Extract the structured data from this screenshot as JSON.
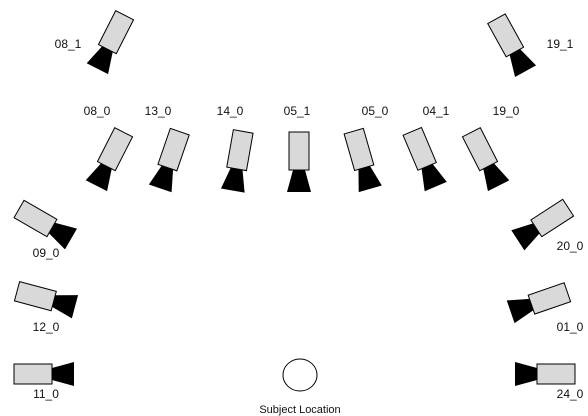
{
  "colors": {
    "camera_body": "#d9d9d9",
    "camera_lens": "#000000",
    "outline": "#000000",
    "subject_fill": "#ffffff"
  },
  "cameras": [
    {
      "id": "08_1",
      "label": "08_1"
    },
    {
      "id": "19_1",
      "label": "19_1"
    },
    {
      "id": "08_0",
      "label": "08_0"
    },
    {
      "id": "13_0",
      "label": "13_0"
    },
    {
      "id": "14_0",
      "label": "14_0"
    },
    {
      "id": "05_1",
      "label": "05_1"
    },
    {
      "id": "05_0",
      "label": "05_0"
    },
    {
      "id": "04_1",
      "label": "04_1"
    },
    {
      "id": "19_0",
      "label": "19_0"
    },
    {
      "id": "09_0",
      "label": "09_0"
    },
    {
      "id": "20_0",
      "label": "20_0"
    },
    {
      "id": "12_0",
      "label": "12_0"
    },
    {
      "id": "01_0",
      "label": "01_0"
    },
    {
      "id": "11_0",
      "label": "11_0"
    },
    {
      "id": "24_0",
      "label": "24_0"
    }
  ],
  "subject": {
    "label": "Subject Location"
  }
}
